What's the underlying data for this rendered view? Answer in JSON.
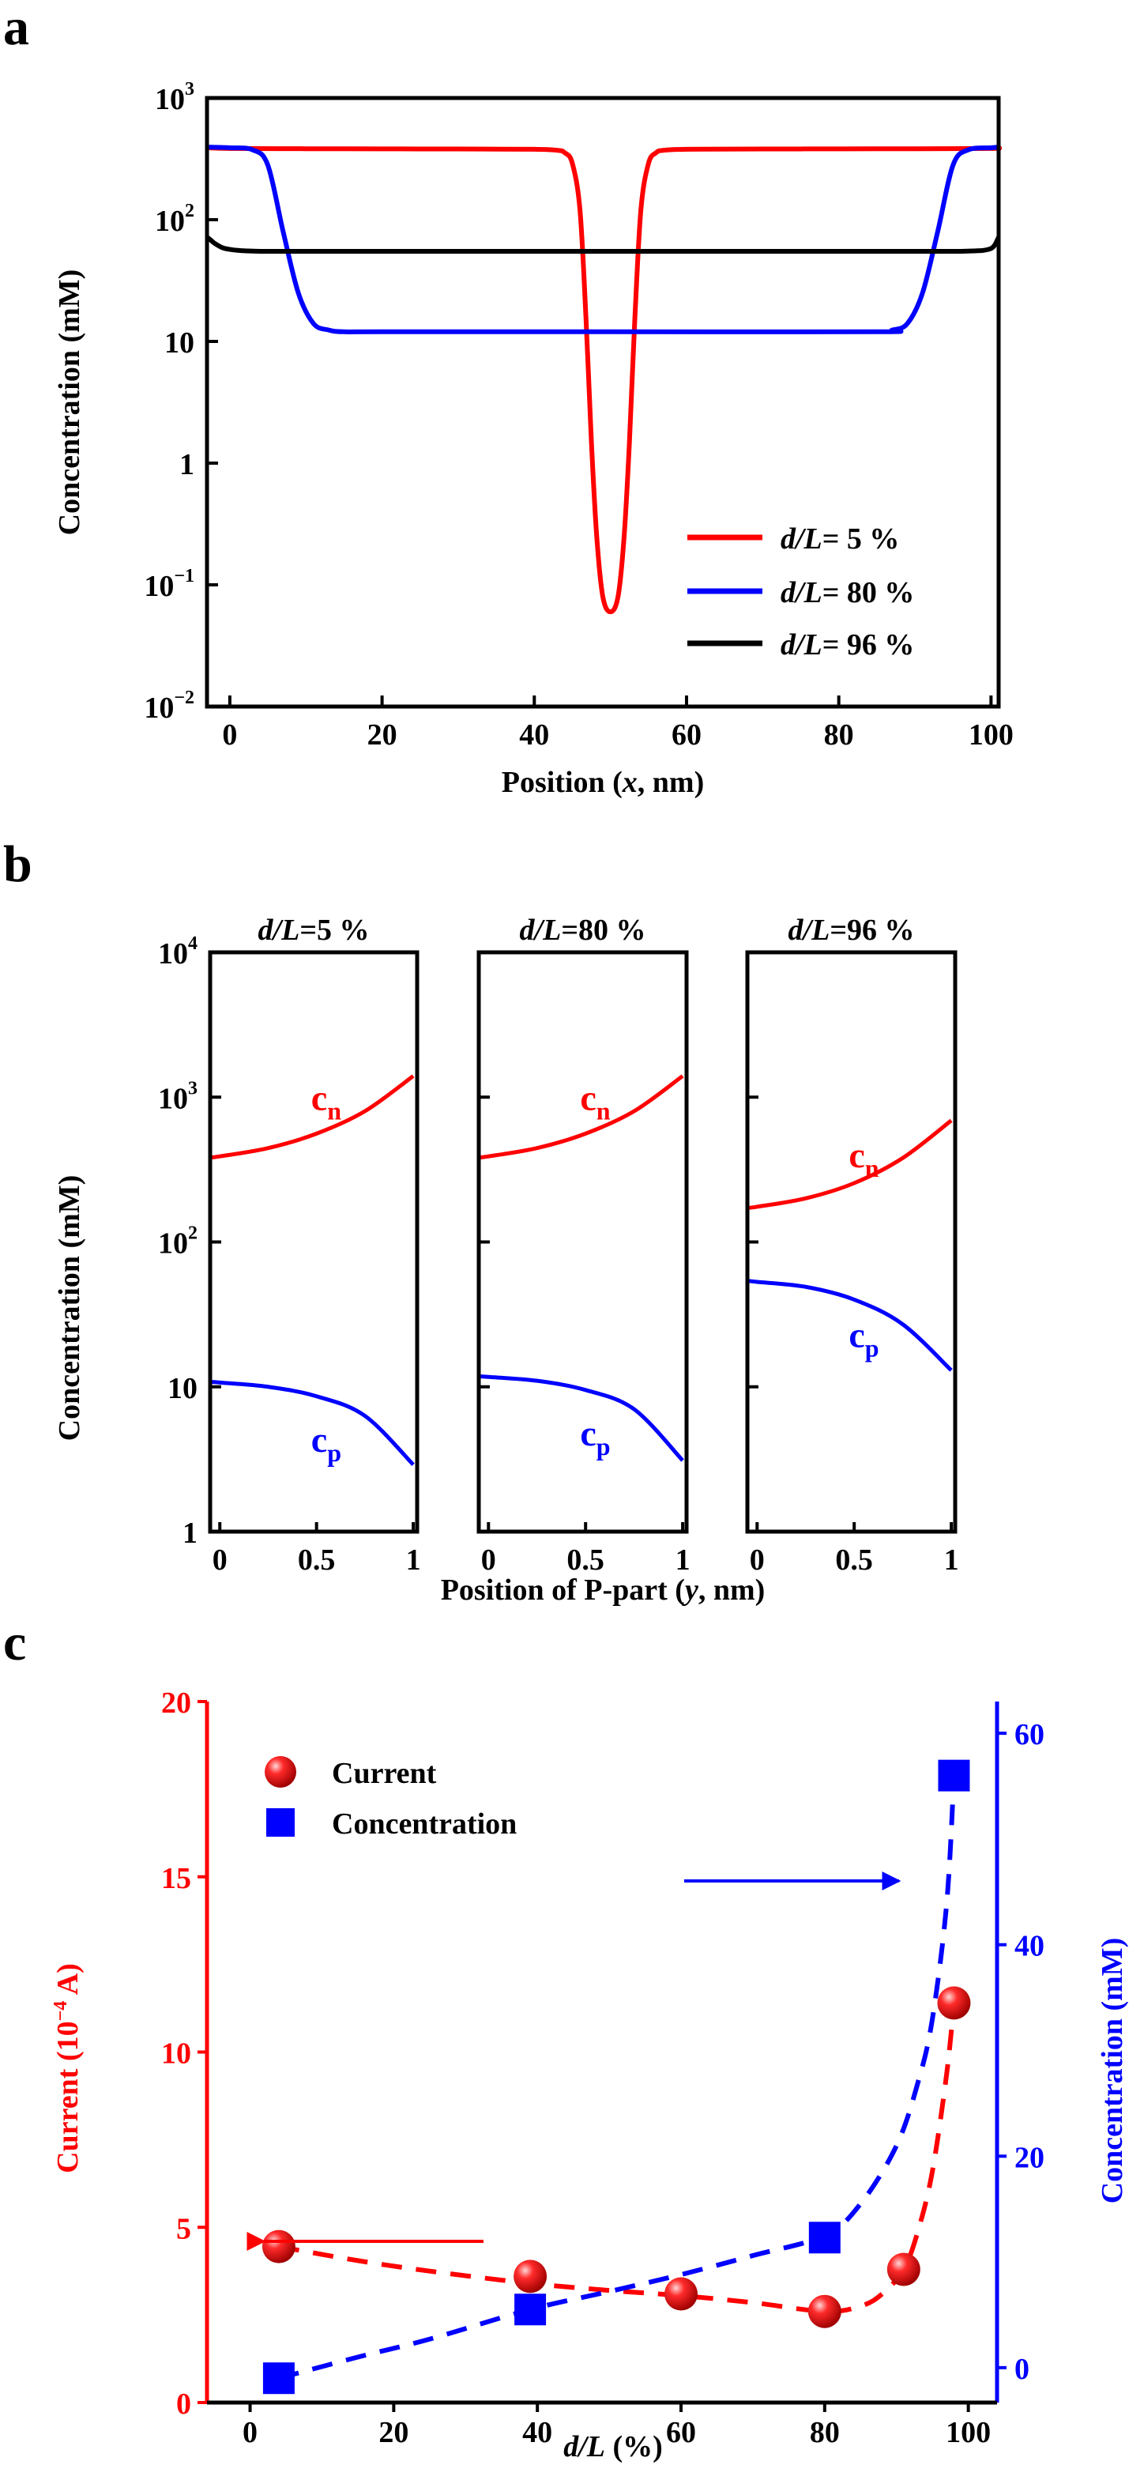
{
  "panel_labels": {
    "a": "a",
    "b": "b",
    "c": "c"
  },
  "colors": {
    "red": "#ff0000",
    "blue": "#0000ff",
    "black": "#000000"
  },
  "chart_data": [
    {
      "id": "a",
      "type": "line",
      "xlabel_parts": [
        "Position (",
        "x",
        ", nm)"
      ],
      "ylabel": "Concentration (mM)",
      "xlim": [
        -3,
        101
      ],
      "ylim_log10": [
        -2,
        3
      ],
      "xticks": [
        0,
        20,
        40,
        60,
        80,
        100
      ],
      "xtick_labels": [
        "0",
        "20",
        "40",
        "60",
        "80",
        "100"
      ],
      "ytick_labels": [
        {
          "v": -2,
          "base": "10",
          "exp": "−2"
        },
        {
          "v": -1,
          "base": "10",
          "exp": "−1"
        },
        {
          "v": 0,
          "base": "1",
          "exp": ""
        },
        {
          "v": 1,
          "base": "10",
          "exp": ""
        },
        {
          "v": 2,
          "base": "10",
          "exp": "2"
        },
        {
          "v": 3,
          "base": "10",
          "exp": "3"
        }
      ],
      "legend": {
        "position": "bottom-right",
        "entries": [
          {
            "name": "d/L",
            "suffix": "= 5 %",
            "color": "#ff0000"
          },
          {
            "name": "d/L",
            "suffix": "= 80 %",
            "color": "#0000ff"
          },
          {
            "name": "d/L",
            "suffix": "= 96 %",
            "color": "#000000"
          }
        ]
      },
      "series": [
        {
          "name": "d/L= 5 %",
          "color": "#ff0000",
          "x": [
            -3,
            0,
            10,
            20,
            30,
            40,
            43,
            44,
            45,
            46,
            46.8,
            47.5,
            48.2,
            49,
            50,
            51,
            51.8,
            52.5,
            53.2,
            54,
            55,
            56,
            57,
            60,
            70,
            80,
            90,
            100,
            101
          ],
          "y": [
            390,
            385,
            383,
            382,
            381,
            379,
            372,
            355,
            290,
            120,
            15,
            1.5,
            0.25,
            0.08,
            0.06,
            0.08,
            0.25,
            1.5,
            15,
            120,
            290,
            355,
            372,
            379,
            381,
            382,
            383,
            385,
            390
          ]
        },
        {
          "name": "d/L= 80 %",
          "color": "#0000ff",
          "x": [
            -3,
            0,
            3,
            5,
            7,
            9,
            11,
            13,
            15,
            20,
            50,
            85,
            87,
            89,
            91,
            93,
            95,
            97,
            100,
            101
          ],
          "y": [
            395,
            390,
            375,
            280,
            80,
            25,
            14,
            12.4,
            12,
            12,
            12,
            12,
            12.4,
            14,
            25,
            80,
            280,
            375,
            390,
            395
          ]
        },
        {
          "name": "d/L= 96 %",
          "color": "#000000",
          "x": [
            -3,
            -2.5,
            -2,
            -1,
            0,
            1,
            2,
            4,
            10,
            50,
            90,
            96,
            98,
            99,
            100,
            100.5,
            101
          ],
          "y": [
            72,
            68,
            64,
            59,
            57,
            56,
            55.5,
            55,
            55,
            55,
            55,
            55,
            55.5,
            56,
            58,
            62,
            72
          ]
        }
      ]
    },
    {
      "id": "b",
      "type": "line",
      "xlabel_parts": [
        "Position of P-part (",
        "y",
        ", nm)"
      ],
      "ylabel": "Concentration (mM)",
      "ylim_log10": [
        0,
        4
      ],
      "ytick_labels": [
        {
          "v": 0,
          "base": "1",
          "exp": ""
        },
        {
          "v": 1,
          "base": "10",
          "exp": ""
        },
        {
          "v": 2,
          "base": "10",
          "exp": "2"
        },
        {
          "v": 3,
          "base": "10",
          "exp": "3"
        },
        {
          "v": 4,
          "base": "10",
          "exp": "4"
        }
      ],
      "xlim": [
        -0.05,
        1.02
      ],
      "xticks": [
        0,
        0.5,
        1
      ],
      "xtick_labels": [
        "0",
        "0.5",
        "1"
      ],
      "subplots": [
        {
          "title_parts": [
            "d/L",
            "=5 %"
          ],
          "cn_label": {
            "base": "c",
            "sub": "n"
          },
          "cp_label": {
            "base": "c",
            "sub": "p"
          },
          "series": [
            {
              "name": "c_n",
              "color": "#ff0000",
              "x": [
                -0.05,
                0,
                0.25,
                0.5,
                0.75,
                1
              ],
              "y": [
                384,
                390,
                445,
                560,
                800,
                1400
              ]
            },
            {
              "name": "c_p",
              "color": "#0000ff",
              "x": [
                -0.05,
                0,
                0.25,
                0.5,
                0.75,
                1
              ],
              "y": [
                10.8,
                10.7,
                10,
                8.6,
                6.3,
                2.9
              ]
            }
          ]
        },
        {
          "title_parts": [
            "d/L",
            "=80 %"
          ],
          "cn_label": {
            "base": "c",
            "sub": "n"
          },
          "cp_label": {
            "base": "c",
            "sub": "p"
          },
          "series": [
            {
              "name": "c_n",
              "color": "#ff0000",
              "x": [
                -0.05,
                0,
                0.25,
                0.5,
                0.75,
                1
              ],
              "y": [
                384,
                390,
                445,
                560,
                800,
                1400
              ]
            },
            {
              "name": "c_p",
              "color": "#0000ff",
              "x": [
                -0.05,
                0,
                0.25,
                0.5,
                0.75,
                1
              ],
              "y": [
                11.8,
                11.7,
                11,
                9.5,
                7,
                3.1
              ]
            }
          ]
        },
        {
          "title_parts": [
            "d/L",
            "=96 %"
          ],
          "cn_label": {
            "base": "c",
            "sub": "n"
          },
          "cp_label": {
            "base": "c",
            "sub": "p"
          },
          "series": [
            {
              "name": "c_n",
              "color": "#ff0000",
              "x": [
                -0.05,
                0,
                0.25,
                0.5,
                0.75,
                1
              ],
              "y": [
                172,
                175,
                200,
                255,
                380,
                690
              ]
            },
            {
              "name": "c_p",
              "color": "#0000ff",
              "x": [
                -0.05,
                0,
                0.25,
                0.5,
                0.75,
                1
              ],
              "y": [
                54,
                53,
                49,
                40,
                27,
                13
              ]
            }
          ]
        }
      ]
    },
    {
      "id": "c",
      "type": "scatter",
      "xlabel_parts": [
        "d/L",
        " (%)"
      ],
      "ylabel_left_parts": [
        "Current (10",
        "−4",
        " A)"
      ],
      "ylabel_right": "Concentration (mM)",
      "xlim": [
        -6,
        104
      ],
      "ylim_left": [
        0,
        20
      ],
      "ylim_right": [
        -3.3,
        63
      ],
      "xticks": [
        0,
        20,
        40,
        60,
        80,
        100
      ],
      "xtick_labels": [
        "0",
        "20",
        "40",
        "60",
        "80",
        "100"
      ],
      "yticks_left": [
        0,
        5,
        10,
        15,
        20
      ],
      "ytick_labels_left": [
        "0",
        "5",
        "10",
        "15",
        "20"
      ],
      "yticks_right": [
        0,
        20,
        40,
        60
      ],
      "ytick_labels_right": [
        "0",
        "20",
        "40",
        "60"
      ],
      "legend": {
        "position": "top-left",
        "entries": [
          {
            "name": "Current",
            "marker": "sphere",
            "color": "#ff0000"
          },
          {
            "name": "Concentration",
            "marker": "square",
            "color": "#0000ff"
          }
        ]
      },
      "series": [
        {
          "name": "Current",
          "axis": "left",
          "color": "#ff0000",
          "x": [
            4,
            39,
            60,
            80,
            91,
            98
          ],
          "y": [
            4.45,
            3.6,
            3.1,
            2.6,
            3.8,
            11.4
          ],
          "fit_x": [
            4,
            15,
            25,
            39,
            50,
            60,
            70,
            80,
            85,
            88,
            91,
            93,
            95,
            97,
            98
          ],
          "fit_y": [
            4.45,
            4.05,
            3.75,
            3.4,
            3.2,
            3.05,
            2.85,
            2.6,
            2.75,
            3.1,
            3.8,
            4.9,
            6.6,
            9.4,
            11.4
          ]
        },
        {
          "name": "Concentration",
          "axis": "right",
          "color": "#0000ff",
          "x": [
            4,
            39,
            80,
            98
          ],
          "y": [
            -1,
            5.5,
            12.3,
            56
          ],
          "fit_x": [
            4,
            15,
            25,
            39,
            50,
            60,
            70,
            80,
            85,
            90,
            93,
            95,
            97,
            98
          ],
          "fit_y": [
            -1,
            1,
            2.7,
            5.5,
            7.2,
            8.8,
            10.6,
            12.5,
            15.5,
            21,
            27,
            33,
            44,
            56
          ]
        }
      ],
      "arrows": [
        {
          "color": "#ff0000",
          "direction": "left",
          "points_to_axis": "left"
        },
        {
          "color": "#0000ff",
          "direction": "right",
          "points_to_axis": "right"
        }
      ]
    }
  ]
}
